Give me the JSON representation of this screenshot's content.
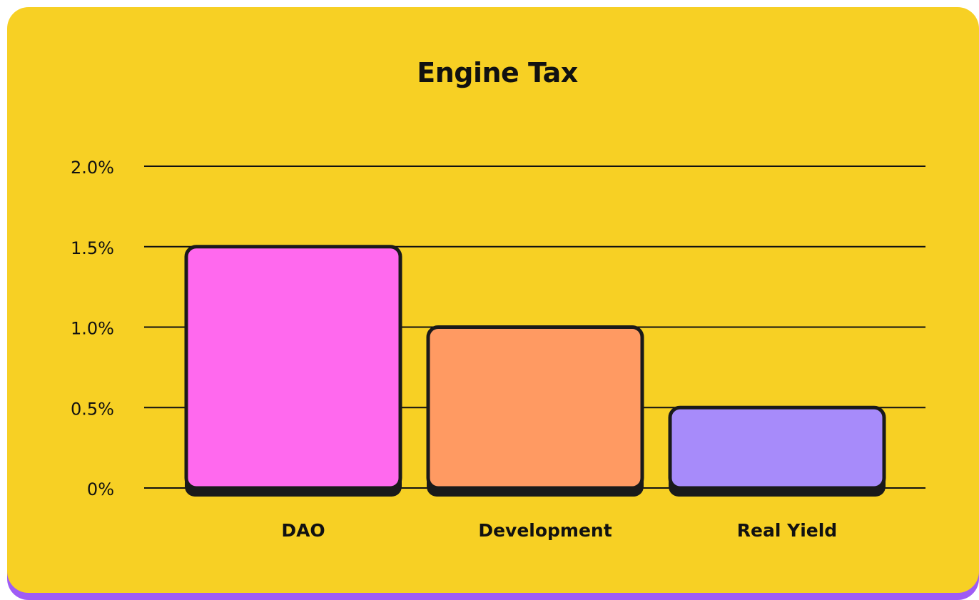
{
  "chart_data": {
    "type": "bar",
    "title": "Engine Tax",
    "xlabel": "",
    "ylabel": "",
    "categories": [
      "DAO",
      "Development",
      "Real Yield"
    ],
    "values": [
      1.5,
      1.0,
      0.5
    ],
    "ylim": [
      0,
      2.0
    ],
    "yticks": [
      0,
      0.5,
      1.0,
      1.5,
      2.0
    ],
    "ytick_labels": [
      "0%",
      "0.5%",
      "1.0%",
      "1.5%",
      "2.0%"
    ],
    "grid": true,
    "legend": "none",
    "colors": [
      "#ff69ee",
      "#ff9a62",
      "#a78bfa"
    ],
    "background_color": "#f7d024",
    "shadow_color": "#9f5cf5"
  }
}
